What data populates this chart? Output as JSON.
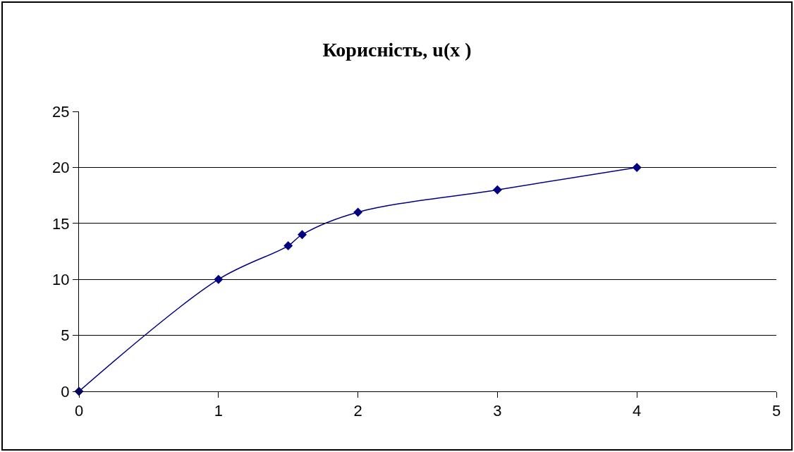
{
  "chart_data": {
    "type": "line",
    "title": "Корисність, u(x )",
    "x": [
      0,
      1,
      1.5,
      1.6,
      2,
      3,
      4
    ],
    "series": [
      {
        "color": "#000080",
        "values": [
          0,
          10,
          13,
          14,
          16,
          18,
          20
        ]
      }
    ],
    "xlim": [
      0,
      5
    ],
    "xticks": [
      0,
      1,
      2,
      3,
      4,
      5
    ],
    "ylim": [
      0,
      25
    ],
    "yticks": [
      0,
      5,
      10,
      15,
      20,
      25
    ],
    "grid": "y",
    "marker": "diamond",
    "line_style": "solid",
    "legend": false
  }
}
